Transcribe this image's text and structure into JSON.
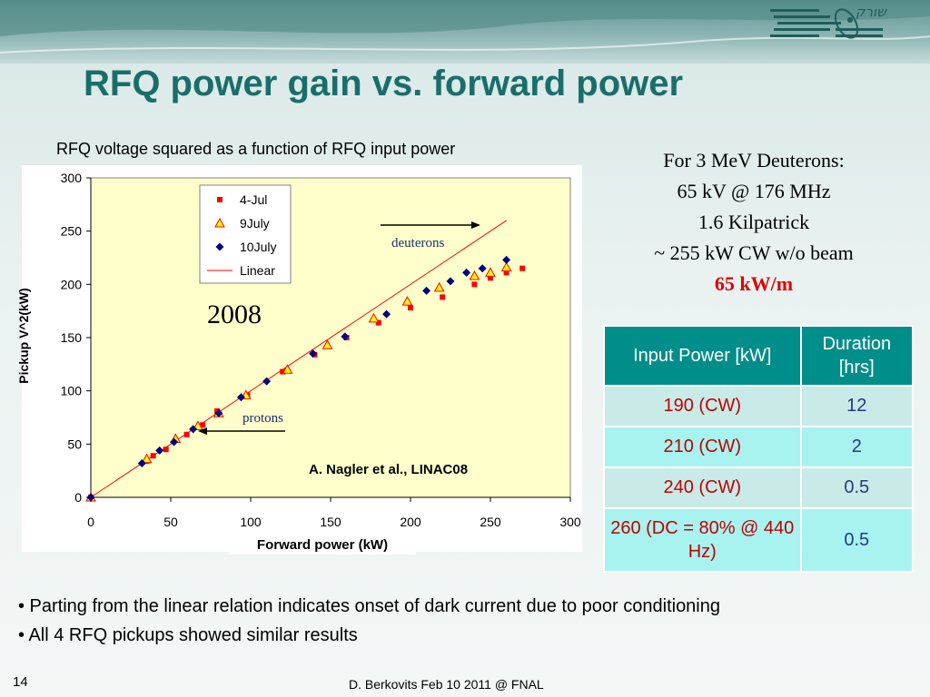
{
  "slide": {
    "title": "RFQ power gain vs.  forward power",
    "logo_text": "שורק",
    "page_number": "14",
    "footer": "D. Berkovits Feb 10 2011 @ FNAL"
  },
  "chart_caption": "RFQ voltage squared as a function of RFQ input power",
  "annotations": {
    "year": "2008",
    "deuterons": "deuterons",
    "protons": "protons",
    "citation": "A. Nagler et al., LINAC08"
  },
  "info": {
    "line1": "For 3 MeV Deuterons:",
    "line2": "65 kV @ 176 MHz",
    "line3": "1.6 Kilpatrick",
    "line4": "~ 255 kW CW w/o beam",
    "line5": "65 kW/m"
  },
  "table": {
    "headers": [
      "Input Power [kW]",
      "Duration [hrs]"
    ],
    "rows": [
      [
        "190 (CW)",
        "12"
      ],
      [
        "210 (CW)",
        "2"
      ],
      [
        "240 (CW)",
        "0.5"
      ],
      [
        "260 (DC = 80% @ 440 Hz)",
        "0.5"
      ]
    ]
  },
  "bullets": [
    "• Parting from the linear relation indicates onset of dark current due to poor conditioning",
    "• All 4 RFQ pickups showed similar results"
  ],
  "colors": {
    "title": "#1a6e6a",
    "plot_bg": "#ffffcc",
    "series_jul4": "#ff0000",
    "series_9july_fill": "#ffff00",
    "series_9july_edge": "#ff0000",
    "series_10july": "#000080",
    "linear": "#ff0000",
    "table_header": "#008e8a",
    "highlight": "#e00000"
  },
  "chart_data": {
    "type": "scatter",
    "xlabel": "Forward power (kW)",
    "ylabel": "Pickup V^2(kW)",
    "xlim": [
      0,
      300
    ],
    "ylim": [
      0,
      300
    ],
    "xticks": [
      0,
      50,
      100,
      150,
      200,
      250,
      300
    ],
    "yticks": [
      0,
      50,
      100,
      150,
      200,
      250,
      300
    ],
    "grid": false,
    "legend_position": "top-center",
    "series": [
      {
        "name": "4-Jul",
        "marker": "square",
        "points": [
          [
            0,
            0
          ],
          [
            35,
            34
          ],
          [
            39,
            39
          ],
          [
            47,
            45
          ],
          [
            60,
            59
          ],
          [
            70,
            68
          ],
          [
            79,
            81
          ],
          [
            98,
            96
          ],
          [
            120,
            118
          ],
          [
            140,
            134
          ],
          [
            160,
            150
          ],
          [
            180,
            164
          ],
          [
            200,
            178
          ],
          [
            220,
            188
          ],
          [
            240,
            200
          ],
          [
            250,
            206
          ],
          [
            260,
            211
          ],
          [
            270,
            215
          ]
        ]
      },
      {
        "name": "9July",
        "marker": "triangle",
        "points": [
          [
            0,
            0
          ],
          [
            35,
            36
          ],
          [
            53,
            55
          ],
          [
            67,
            67
          ],
          [
            80,
            79
          ],
          [
            97,
            96
          ],
          [
            123,
            120
          ],
          [
            148,
            143
          ],
          [
            177,
            168
          ],
          [
            198,
            184
          ],
          [
            218,
            197
          ],
          [
            240,
            208
          ],
          [
            250,
            211
          ],
          [
            260,
            216
          ]
        ]
      },
      {
        "name": "10July",
        "marker": "diamond",
        "points": [
          [
            0,
            0
          ],
          [
            32,
            32
          ],
          [
            43,
            44
          ],
          [
            52,
            52
          ],
          [
            64,
            64
          ],
          [
            80,
            79
          ],
          [
            94,
            94
          ],
          [
            110,
            109
          ],
          [
            139,
            135
          ],
          [
            159,
            151
          ],
          [
            185,
            172
          ],
          [
            210,
            194
          ],
          [
            225,
            203
          ],
          [
            235,
            211
          ],
          [
            245,
            215
          ],
          [
            260,
            223
          ]
        ]
      },
      {
        "name": "Linear",
        "type": "line",
        "points": [
          [
            0,
            0
          ],
          [
            260,
            260
          ]
        ]
      }
    ]
  }
}
